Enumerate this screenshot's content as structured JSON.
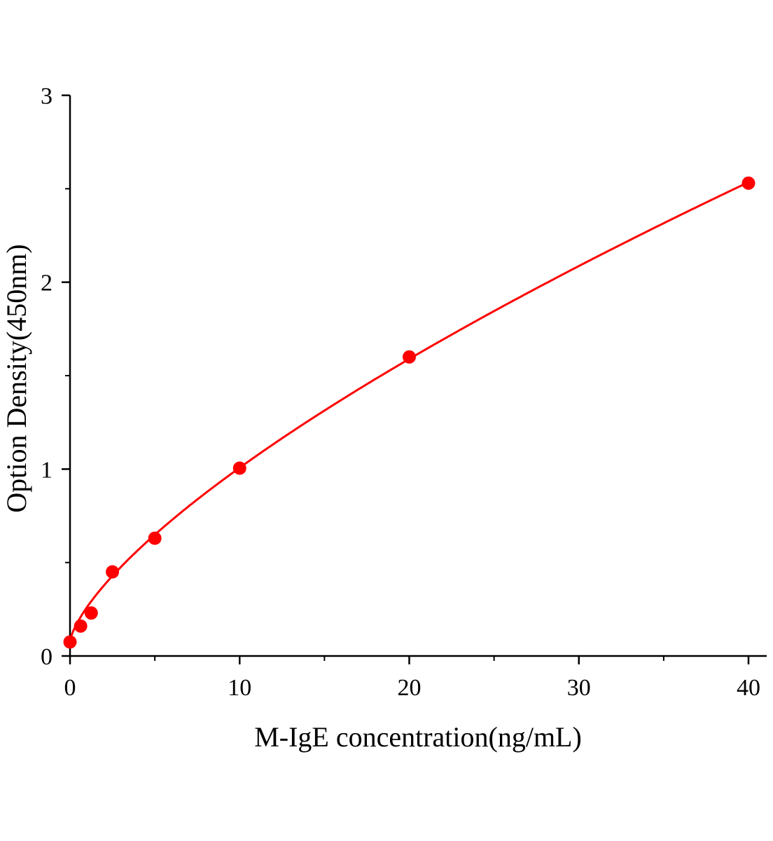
{
  "chart_data": {
    "type": "scatter",
    "title": "",
    "xlabel": "M-IgE concentration(ng/mL)",
    "ylabel": "Option Density(450nm)",
    "xlim": [
      0,
      41
    ],
    "ylim": [
      0,
      3
    ],
    "x_ticks": [
      0,
      10,
      20,
      30,
      40
    ],
    "x_tick_labels": [
      "0",
      "10",
      "20",
      "30",
      "40"
    ],
    "x_minor_ticks": [
      5,
      15,
      25,
      35
    ],
    "y_ticks": [
      0,
      1,
      2,
      3
    ],
    "y_tick_labels": [
      "0",
      "1",
      "2",
      "3"
    ],
    "y_minor_ticks": [
      0.5,
      1.5,
      2.5
    ],
    "grid": false,
    "series": [
      {
        "x": [
          0,
          0.625,
          1.25,
          2.5,
          5,
          10,
          20,
          40
        ],
        "y": [
          0.075,
          0.16,
          0.23,
          0.45,
          0.63,
          1.005,
          1.6,
          2.53
        ],
        "color": "#ff0000",
        "marker": "circle",
        "fit_line": true
      }
    ]
  }
}
